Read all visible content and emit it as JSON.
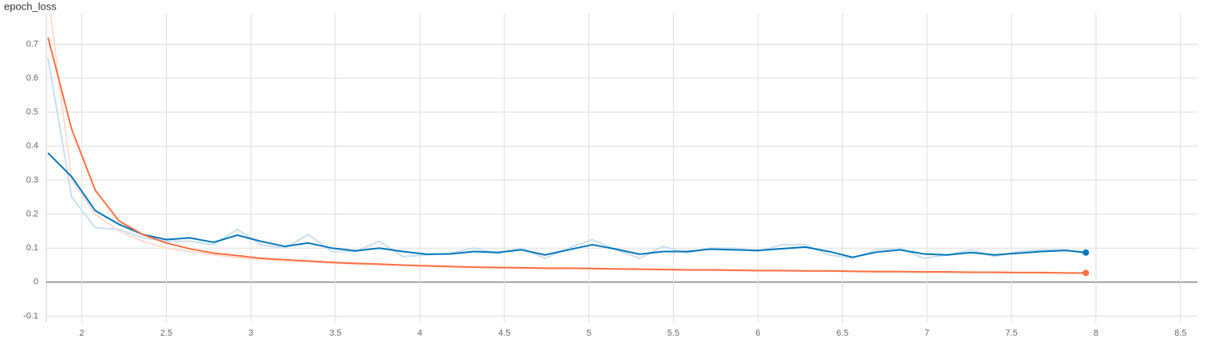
{
  "chart_data": {
    "type": "line",
    "title": "epoch_loss",
    "x": [
      1.8,
      1.94,
      2.08,
      2.22,
      2.36,
      2.5,
      2.64,
      2.78,
      2.92,
      3.06,
      3.2,
      3.34,
      3.48,
      3.62,
      3.76,
      3.9,
      4.04,
      4.18,
      4.32,
      4.46,
      4.6,
      4.74,
      4.88,
      5.02,
      5.16,
      5.3,
      5.44,
      5.58,
      5.72,
      5.86,
      6.0,
      6.14,
      6.28,
      6.42,
      6.56,
      6.7,
      6.84,
      6.98,
      7.12,
      7.26,
      7.4,
      7.54,
      7.68,
      7.82,
      7.94
    ],
    "series": [
      {
        "color": "#c9dfee",
        "values": [
          0.66,
          0.25,
          0.16,
          0.155,
          0.13,
          0.12,
          0.12,
          0.11,
          0.155,
          0.11,
          0.1,
          0.14,
          0.09,
          0.09,
          0.12,
          0.075,
          0.08,
          0.085,
          0.1,
          0.085,
          0.1,
          0.07,
          0.1,
          0.125,
          0.095,
          0.07,
          0.105,
          0.085,
          0.1,
          0.1,
          0.09,
          0.11,
          0.11,
          0.08,
          0.07,
          0.095,
          0.1,
          0.07,
          0.08,
          0.095,
          0.075,
          0.09,
          0.095,
          0.095,
          0.085
        ]
      },
      {
        "color": "#ffdcd0",
        "values": [
          0.85,
          0.3,
          0.2,
          0.15,
          0.12,
          0.1,
          0.09,
          0.08,
          0.072,
          0.067,
          0.063,
          0.06,
          0.056,
          0.053,
          0.051,
          0.049,
          0.047,
          0.045,
          0.043,
          0.042,
          0.041,
          0.04,
          0.04,
          0.039,
          0.038,
          0.037,
          0.036,
          0.035,
          0.035,
          0.034,
          0.033,
          0.033,
          0.032,
          0.032,
          0.031,
          0.03,
          0.03,
          0.029,
          0.029,
          0.028,
          0.028,
          0.027,
          0.027,
          0.027,
          0.026
        ]
      },
      {
        "color": "#0077bb",
        "values": [
          0.38,
          0.31,
          0.21,
          0.17,
          0.14,
          0.125,
          0.13,
          0.117,
          0.138,
          0.12,
          0.105,
          0.115,
          0.1,
          0.092,
          0.1,
          0.09,
          0.082,
          0.083,
          0.09,
          0.087,
          0.095,
          0.08,
          0.095,
          0.11,
          0.097,
          0.082,
          0.09,
          0.09,
          0.097,
          0.095,
          0.093,
          0.098,
          0.103,
          0.09,
          0.073,
          0.088,
          0.095,
          0.083,
          0.08,
          0.087,
          0.08,
          0.085,
          0.09,
          0.093,
          0.087
        ],
        "end_marker": true
      },
      {
        "color": "#ff7043",
        "values": [
          0.72,
          0.45,
          0.27,
          0.18,
          0.14,
          0.115,
          0.098,
          0.085,
          0.078,
          0.07,
          0.066,
          0.062,
          0.058,
          0.055,
          0.053,
          0.05,
          0.048,
          0.046,
          0.044,
          0.043,
          0.042,
          0.041,
          0.041,
          0.04,
          0.039,
          0.038,
          0.037,
          0.036,
          0.036,
          0.035,
          0.034,
          0.034,
          0.033,
          0.033,
          0.032,
          0.031,
          0.031,
          0.03,
          0.03,
          0.029,
          0.029,
          0.028,
          0.028,
          0.027,
          0.027
        ],
        "end_marker": true
      }
    ],
    "xlim": [
      1.79,
      8.6
    ],
    "ylim": [
      -0.12,
      0.79
    ],
    "xticks": [
      2,
      2.5,
      3,
      3.5,
      4,
      4.5,
      5,
      5.5,
      6,
      6.5,
      7,
      7.5,
      8,
      8.5
    ],
    "yticks": [
      -0.1,
      0,
      0.1,
      0.2,
      0.3,
      0.4,
      0.5,
      0.6,
      0.7
    ],
    "grid": true
  }
}
